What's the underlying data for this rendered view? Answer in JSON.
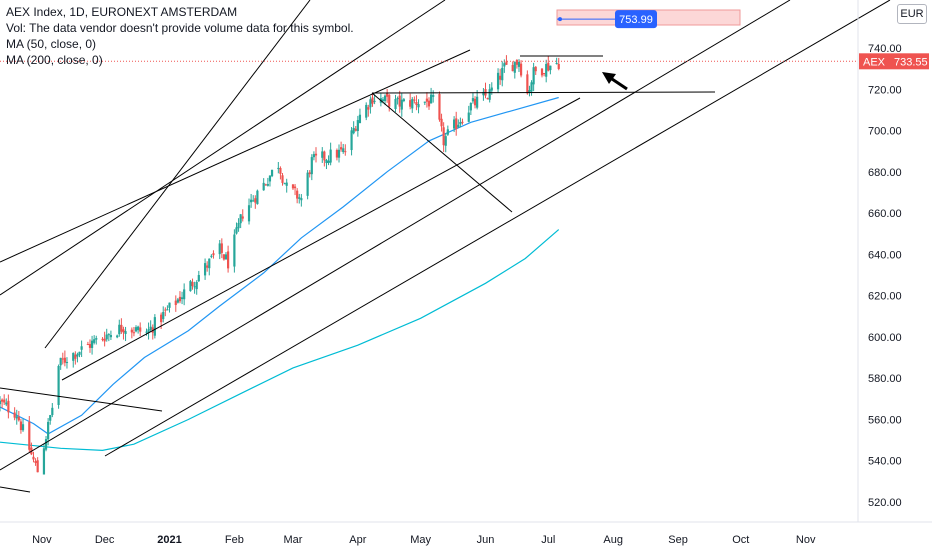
{
  "legend": {
    "title": "AEX Index, 1D, EURONEXT AMSTERDAM",
    "vol": "Vol: The data vendor doesn't provide volume data for this symbol.",
    "ma50": "MA (50, close, 0)",
    "ma200": "MA (200, close, 0)"
  },
  "currency": "EUR",
  "price_label": {
    "symbol": "AEX",
    "value": "733.55"
  },
  "target_label": "753.99",
  "colors": {
    "up": "#26a69a",
    "down": "#ef5350",
    "ma50": "#2196f3",
    "ma200": "#00bcd4",
    "trendline": "#000000",
    "price_line": "#ef5350",
    "target_box": "#fcd7d7",
    "target_badge": "#2962ff"
  },
  "chart_data": {
    "type": "candlestick",
    "title": "AEX Index, 1D, EURONEXT AMSTERDAM",
    "ylim": [
      510,
      760
    ],
    "y_ticks": [
      520,
      540,
      560,
      580,
      600,
      620,
      640,
      660,
      680,
      700,
      720,
      740
    ],
    "y_tick_labels": [
      "520.00",
      "540.00",
      "560.00",
      "580.00",
      "600.00",
      "620.00",
      "640.00",
      "660.00",
      "680.00",
      "700.00",
      "720.00",
      "740.00"
    ],
    "x_range": [
      "2020-10-12",
      "2021-11-26"
    ],
    "x_ticks": [
      {
        "date": "2020-11-01",
        "label": "Nov"
      },
      {
        "date": "2020-12-01",
        "label": "Dec"
      },
      {
        "date": "2021-01-01",
        "label": "2021"
      },
      {
        "date": "2021-02-01",
        "label": "Feb"
      },
      {
        "date": "2021-03-01",
        "label": "Mar"
      },
      {
        "date": "2021-04-01",
        "label": "Apr"
      },
      {
        "date": "2021-05-01",
        "label": "May"
      },
      {
        "date": "2021-06-01",
        "label": "Jun"
      },
      {
        "date": "2021-07-01",
        "label": "Jul"
      },
      {
        "date": "2021-08-01",
        "label": "Aug"
      },
      {
        "date": "2021-09-01",
        "label": "Sep"
      },
      {
        "date": "2021-10-01",
        "label": "Oct"
      },
      {
        "date": "2021-11-01",
        "label": "Nov"
      }
    ],
    "close_path": [
      [
        "2020-10-12",
        568
      ],
      [
        "2020-10-20",
        563
      ],
      [
        "2020-10-28",
        540
      ],
      [
        "2020-10-30",
        535
      ],
      [
        "2020-11-03",
        552
      ],
      [
        "2020-11-06",
        566
      ],
      [
        "2020-11-09",
        586
      ],
      [
        "2020-11-13",
        590
      ],
      [
        "2020-11-20",
        594
      ],
      [
        "2020-11-30",
        600
      ],
      [
        "2020-12-10",
        605
      ],
      [
        "2020-12-21",
        602
      ],
      [
        "2021-01-05",
        618
      ],
      [
        "2021-01-15",
        630
      ],
      [
        "2021-01-25",
        642
      ],
      [
        "2021-01-29",
        636
      ],
      [
        "2021-02-05",
        660
      ],
      [
        "2021-02-15",
        674
      ],
      [
        "2021-02-22",
        684
      ],
      [
        "2021-02-26",
        672
      ],
      [
        "2021-03-05",
        667
      ],
      [
        "2021-03-10",
        685
      ],
      [
        "2021-03-19",
        688
      ],
      [
        "2021-03-26",
        690
      ],
      [
        "2021-04-01",
        706
      ],
      [
        "2021-04-08",
        716
      ],
      [
        "2021-04-20",
        713
      ],
      [
        "2021-04-29",
        714
      ],
      [
        "2021-05-07",
        714
      ],
      [
        "2021-05-12",
        695
      ],
      [
        "2021-05-17",
        702
      ],
      [
        "2021-05-25",
        712
      ],
      [
        "2021-06-03",
        718
      ],
      [
        "2021-06-10",
        730
      ],
      [
        "2021-06-17",
        734
      ],
      [
        "2021-06-21",
        718
      ],
      [
        "2021-06-24",
        728
      ],
      [
        "2021-06-30",
        731
      ],
      [
        "2021-07-06",
        733
      ]
    ],
    "series": [
      {
        "name": "MA (50, close, 0)",
        "values": [
          [
            "2020-10-12",
            566
          ],
          [
            "2020-10-28",
            558
          ],
          [
            "2020-11-04",
            553
          ],
          [
            "2020-11-20",
            562
          ],
          [
            "2020-12-05",
            577
          ],
          [
            "2020-12-20",
            590
          ],
          [
            "2021-01-10",
            603
          ],
          [
            "2021-01-25",
            615
          ],
          [
            "2021-02-15",
            631
          ],
          [
            "2021-03-05",
            648
          ],
          [
            "2021-03-25",
            663
          ],
          [
            "2021-04-15",
            680
          ],
          [
            "2021-05-05",
            695
          ],
          [
            "2021-05-25",
            704
          ],
          [
            "2021-06-15",
            710
          ],
          [
            "2021-07-06",
            716
          ]
        ]
      },
      {
        "name": "MA (200, close, 0)",
        "values": [
          [
            "2020-10-12",
            549
          ],
          [
            "2020-11-10",
            546
          ],
          [
            "2020-11-30",
            545
          ],
          [
            "2020-12-15",
            548
          ],
          [
            "2021-01-10",
            560
          ],
          [
            "2021-02-05",
            573
          ],
          [
            "2021-03-01",
            585
          ],
          [
            "2021-04-01",
            596
          ],
          [
            "2021-05-01",
            609
          ],
          [
            "2021-06-01",
            626
          ],
          [
            "2021-06-20",
            638
          ],
          [
            "2021-07-06",
            652
          ]
        ]
      }
    ],
    "last_price": 733.55,
    "target_price": 753.99,
    "grid": false
  }
}
